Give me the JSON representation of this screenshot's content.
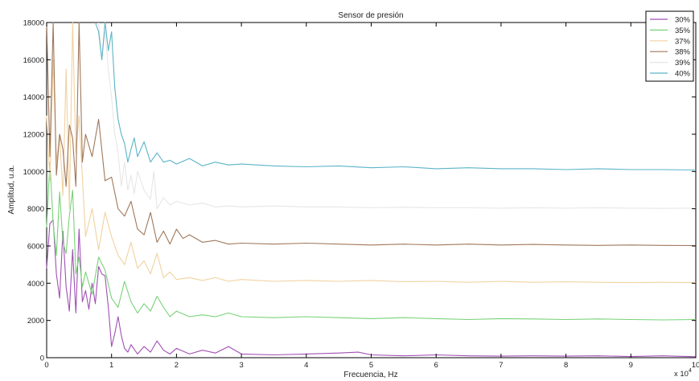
{
  "chart_data": {
    "type": "line",
    "title": "Sensor de presión",
    "xlabel": "Frecuencia, Hz",
    "ylabel": "Amplitud, u.a.",
    "x_exponent_label": "x 10",
    "x_exponent_power": "4",
    "xlim": [
      0,
      10
    ],
    "ylim": [
      0,
      18000
    ],
    "x_ticks": [
      0,
      1,
      2,
      3,
      4,
      5,
      6,
      7,
      8,
      9,
      10
    ],
    "y_ticks": [
      0,
      2000,
      4000,
      6000,
      8000,
      10000,
      12000,
      14000,
      16000,
      18000
    ],
    "grid": false,
    "legend_position": "top-right",
    "series": [
      {
        "name": "30%",
        "color": "#a050b4",
        "x": [
          0,
          0.05,
          0.1,
          0.15,
          0.2,
          0.25,
          0.3,
          0.35,
          0.4,
          0.45,
          0.5,
          0.55,
          0.6,
          0.65,
          0.7,
          0.75,
          0.8,
          0.85,
          0.9,
          0.95,
          1.0,
          1.05,
          1.1,
          1.15,
          1.2,
          1.25,
          1.3,
          1.4,
          1.5,
          1.6,
          1.7,
          1.8,
          1.9,
          2.0,
          2.2,
          2.4,
          2.6,
          2.8,
          3.0,
          3.5,
          4.0,
          4.5,
          4.8,
          5.0,
          5.5,
          6.0,
          6.5,
          7.0,
          7.5,
          8.0,
          8.5,
          9.0,
          9.5,
          10.0
        ],
        "y": [
          4800,
          7200,
          7400,
          4500,
          3200,
          6800,
          3800,
          2500,
          5800,
          2400,
          6900,
          3000,
          3600,
          2600,
          4000,
          2900,
          4900,
          4500,
          4400,
          2700,
          600,
          1300,
          2200,
          1200,
          500,
          300,
          700,
          200,
          600,
          300,
          900,
          400,
          200,
          500,
          200,
          400,
          250,
          600,
          200,
          150,
          200,
          250,
          300,
          150,
          100,
          150,
          100,
          80,
          100,
          80,
          100,
          60,
          100,
          50
        ]
      },
      {
        "name": "35%",
        "color": "#78d278",
        "x": [
          0,
          0.05,
          0.1,
          0.15,
          0.2,
          0.25,
          0.3,
          0.35,
          0.4,
          0.45,
          0.5,
          0.55,
          0.6,
          0.7,
          0.8,
          0.9,
          1.0,
          1.1,
          1.2,
          1.3,
          1.4,
          1.5,
          1.6,
          1.7,
          1.8,
          1.9,
          2.0,
          2.2,
          2.4,
          2.6,
          2.8,
          3.0,
          3.5,
          4.0,
          4.5,
          5.0,
          5.5,
          6.0,
          6.5,
          7.0,
          7.5,
          8.0,
          8.5,
          9.0,
          9.5,
          10.0
        ],
        "y": [
          7000,
          10500,
          7200,
          5500,
          8900,
          6200,
          5600,
          7600,
          9000,
          4500,
          5400,
          3800,
          4600,
          3400,
          5400,
          4700,
          3200,
          2700,
          4100,
          3000,
          2400,
          2900,
          2500,
          3300,
          2700,
          2200,
          2500,
          2200,
          2300,
          2200,
          2400,
          2200,
          2150,
          2200,
          2150,
          2100,
          2150,
          2100,
          2050,
          2100,
          2080,
          2050,
          2080,
          2050,
          2030,
          2050
        ]
      },
      {
        "name": "37%",
        "color": "#f0d2a0",
        "x": [
          0,
          0.05,
          0.1,
          0.15,
          0.2,
          0.25,
          0.3,
          0.35,
          0.4,
          0.45,
          0.5,
          0.6,
          0.7,
          0.8,
          0.9,
          1.0,
          1.1,
          1.2,
          1.3,
          1.4,
          1.5,
          1.6,
          1.7,
          1.8,
          1.9,
          2.0,
          2.2,
          2.4,
          2.6,
          2.8,
          3.0,
          3.5,
          4.0,
          4.5,
          5.0,
          5.5,
          6.0,
          6.5,
          7.0,
          7.5,
          8.0,
          8.5,
          9.0,
          9.5,
          10.0
        ],
        "y": [
          13000,
          9500,
          16000,
          10500,
          12000,
          8700,
          15500,
          8000,
          18000,
          11000,
          13000,
          6500,
          8000,
          5800,
          7800,
          6500,
          5500,
          5000,
          6200,
          4800,
          5200,
          4500,
          5600,
          4300,
          4600,
          4200,
          4300,
          4150,
          4300,
          4100,
          4200,
          4100,
          4150,
          4100,
          4150,
          4080,
          4100,
          4050,
          4100,
          4050,
          4080,
          4050,
          4030,
          4050,
          4030
        ]
      },
      {
        "name": "38%",
        "color": "#a0785a",
        "x": [
          0,
          0.05,
          0.1,
          0.15,
          0.2,
          0.25,
          0.3,
          0.35,
          0.4,
          0.45,
          0.5,
          0.55,
          0.6,
          0.7,
          0.8,
          0.9,
          1.0,
          1.1,
          1.2,
          1.3,
          1.4,
          1.5,
          1.6,
          1.7,
          1.8,
          1.9,
          2.0,
          2.1,
          2.2,
          2.4,
          2.6,
          2.8,
          3.0,
          3.5,
          4.0,
          4.5,
          5.0,
          5.5,
          6.0,
          6.5,
          7.0,
          7.5,
          8.0,
          8.5,
          9.0,
          9.5,
          10.0
        ],
        "y": [
          18000,
          10800,
          18000,
          9800,
          12000,
          11200,
          9200,
          12500,
          11800,
          9200,
          18000,
          10500,
          12000,
          10800,
          12800,
          9500,
          9700,
          8000,
          7600,
          8400,
          6900,
          6600,
          7800,
          6200,
          6800,
          6100,
          6900,
          6400,
          6600,
          6200,
          6300,
          6100,
          6150,
          6100,
          6150,
          6100,
          6050,
          6100,
          6050,
          6100,
          6050,
          6080,
          6050,
          6030,
          6050,
          6030,
          6020
        ]
      },
      {
        "name": "39%",
        "color": "#e6e6e6",
        "x": [
          0.8,
          0.85,
          0.9,
          0.95,
          1.0,
          1.05,
          1.1,
          1.15,
          1.2,
          1.25,
          1.3,
          1.35,
          1.4,
          1.5,
          1.6,
          1.65,
          1.7,
          1.8,
          1.9,
          2.0,
          2.2,
          2.4,
          2.6,
          2.8,
          3.0,
          3.5,
          4.0,
          4.5,
          5.0,
          5.5,
          6.0,
          6.5,
          7.0,
          7.5,
          8.0,
          8.5,
          9.0,
          9.5,
          10.0
        ],
        "y": [
          18000,
          16000,
          17500,
          15500,
          14000,
          12000,
          11000,
          9200,
          10500,
          9000,
          9800,
          8800,
          10000,
          9000,
          8500,
          10000,
          8000,
          8600,
          8200,
          8400,
          8200,
          8300,
          8100,
          8150,
          8100,
          8150,
          8100,
          8100,
          8050,
          8080,
          8050,
          8050,
          8030,
          8050,
          8030,
          8050,
          8030,
          8020,
          8030
        ]
      },
      {
        "name": "40%",
        "color": "#5ab4c8",
        "x": [
          0.75,
          0.8,
          0.85,
          0.9,
          0.95,
          1.0,
          1.05,
          1.1,
          1.15,
          1.2,
          1.25,
          1.3,
          1.35,
          1.4,
          1.5,
          1.6,
          1.7,
          1.8,
          1.9,
          2.0,
          2.2,
          2.4,
          2.6,
          2.8,
          3.0,
          3.5,
          4.0,
          4.5,
          5.0,
          5.5,
          6.0,
          6.5,
          7.0,
          7.5,
          8.0,
          8.5,
          9.0,
          9.5,
          10.0
        ],
        "y": [
          18000,
          17500,
          16000,
          18000,
          16500,
          17500,
          14500,
          12800,
          12000,
          11500,
          10500,
          11200,
          11800,
          10800,
          11600,
          10500,
          11000,
          10500,
          10600,
          10400,
          10700,
          10300,
          10500,
          10350,
          10400,
          10300,
          10250,
          10300,
          10200,
          10250,
          10150,
          10200,
          10150,
          10150,
          10100,
          10150,
          10100,
          10100,
          10080
        ]
      }
    ]
  }
}
